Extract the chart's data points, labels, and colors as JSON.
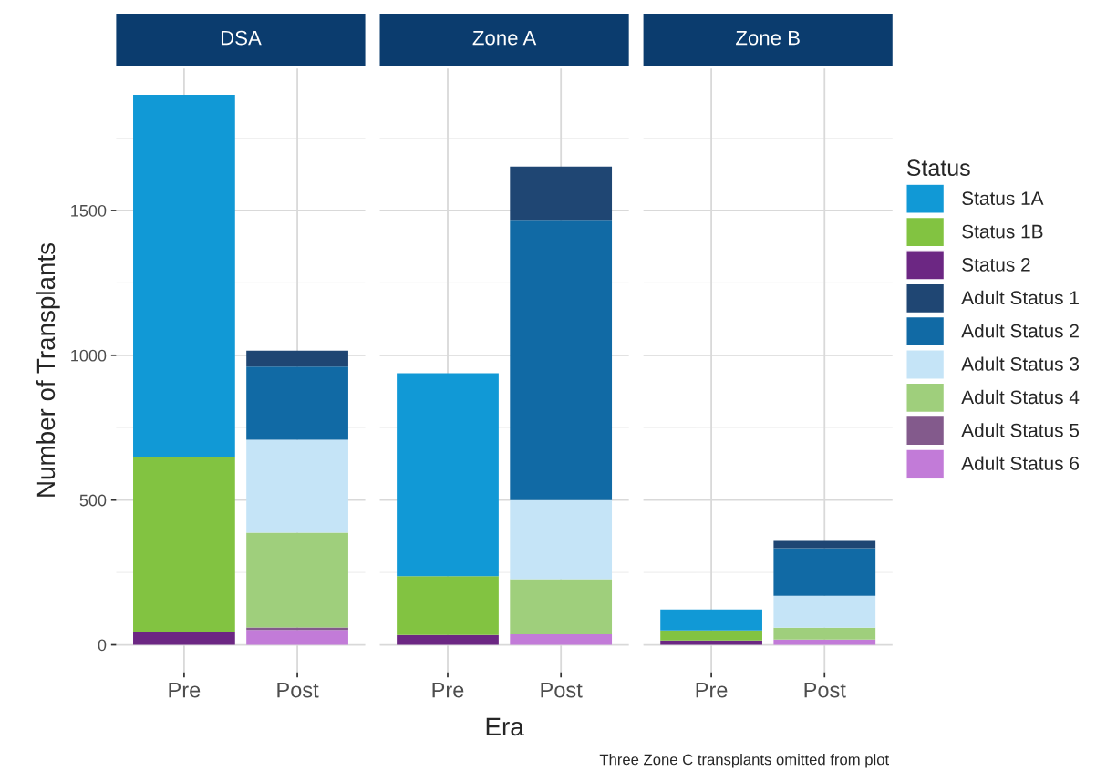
{
  "chart_data": [
    {
      "type": "bar",
      "title": "DSA",
      "ylabel": "Number of Transplants",
      "categories": [
        "Pre",
        "Post"
      ],
      "stacked": true,
      "ylim": [
        -95,
        1990
      ],
      "yticks": [
        0,
        500,
        1000,
        1500
      ],
      "grid": true,
      "legend": "right",
      "legend_title": "Status",
      "series": [
        {
          "name": "Adult Status 6",
          "color": "#c27bd8",
          "values": [
            null,
            51
          ]
        },
        {
          "name": "Adult Status 5",
          "color": "#835a8c",
          "values": [
            null,
            9
          ]
        },
        {
          "name": "Adult Status 4",
          "color": "#9fcf7c",
          "values": [
            null,
            327
          ]
        },
        {
          "name": "Adult Status 3",
          "color": "#c5e4f7",
          "values": [
            null,
            321
          ]
        },
        {
          "name": "Adult Status 2",
          "color": "#116aa5",
          "values": [
            null,
            253
          ]
        },
        {
          "name": "Adult Status 1",
          "color": "#1f4673",
          "values": [
            null,
            55
          ]
        },
        {
          "name": "Status 2",
          "color": "#6c2783",
          "values": [
            45,
            null
          ]
        },
        {
          "name": "Status 1B",
          "color": "#82c341",
          "values": [
            603,
            null
          ]
        },
        {
          "name": "Status 1A",
          "color": "#1199d6",
          "values": [
            1252,
            null
          ]
        }
      ]
    },
    {
      "type": "bar",
      "title": "Zone A",
      "xlabel": "Era",
      "categories": [
        "Pre",
        "Post"
      ],
      "stacked": true,
      "ylim": [
        -95,
        1990
      ],
      "yticks": [
        0,
        500,
        1000,
        1500
      ],
      "grid": true,
      "tick_labels": "x",
      "series": [
        {
          "color": "#c27bd8",
          "values": [
            null,
            36
          ]
        },
        {
          "color": "#835a8c",
          "values": [
            null,
            null
          ]
        },
        {
          "color": "#9fcf7c",
          "values": [
            null,
            191
          ]
        },
        {
          "color": "#c5e4f7",
          "values": [
            null,
            273
          ]
        },
        {
          "color": "#116aa5",
          "values": [
            null,
            968
          ]
        },
        {
          "color": "#1f4673",
          "values": [
            null,
            184
          ]
        },
        {
          "color": "#6c2783",
          "values": [
            34,
            null
          ]
        },
        {
          "color": "#82c341",
          "values": [
            203,
            null
          ]
        },
        {
          "color": "#1199d6",
          "values": [
            701,
            null
          ]
        }
      ]
    },
    {
      "type": "bar",
      "title": "Zone B",
      "categories": [
        "Pre",
        "Post"
      ],
      "stacked": true,
      "ylim": [
        -95,
        1990
      ],
      "yticks": [
        0,
        500,
        1000,
        1500
      ],
      "grid": true,
      "tick_labels": "x",
      "annotations": [
        "Three Zone C transplants omitted from plot"
      ],
      "series": [
        {
          "color": "#c27bd8",
          "values": [
            null,
            18
          ]
        },
        {
          "color": "#835a8c",
          "values": [
            null,
            null
          ]
        },
        {
          "color": "#9fcf7c",
          "values": [
            null,
            41
          ]
        },
        {
          "color": "#c5e4f7",
          "values": [
            null,
            110
          ]
        },
        {
          "color": "#116aa5",
          "values": [
            null,
            165
          ]
        },
        {
          "color": "#1f4673",
          "values": [
            null,
            25
          ]
        },
        {
          "color": "#6c2783",
          "values": [
            15,
            null
          ]
        },
        {
          "color": "#82c341",
          "values": [
            35,
            null
          ]
        },
        {
          "color": "#1199d6",
          "values": [
            72,
            null
          ]
        }
      ]
    }
  ]
}
